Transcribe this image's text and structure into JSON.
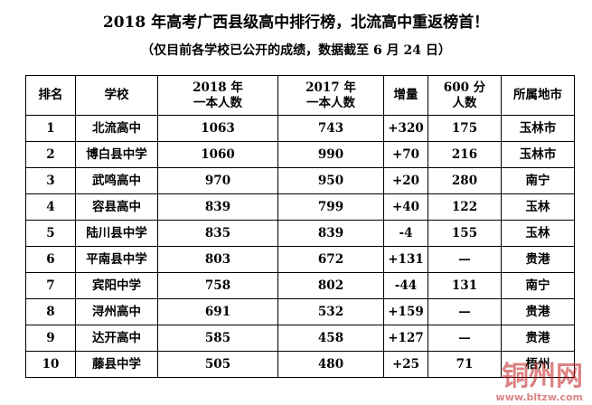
{
  "header": {
    "title": "2018 年高考广西县级高中排行榜，北流高中重返榜首！",
    "subtitle": "（仅目前各学校已公开的成绩，数据截至 6 月 24 日）"
  },
  "table": {
    "columns": [
      "排名",
      "学校",
      "2018 年\n一本人数",
      "2017 年\n一本人数",
      "增量",
      "600 分\n人数",
      "所属地市"
    ],
    "rows": [
      [
        "1",
        "北流高中",
        "1063",
        "743",
        "+320",
        "175",
        "玉林市"
      ],
      [
        "2",
        "博白县中学",
        "1060",
        "990",
        "+70",
        "216",
        "玉林市"
      ],
      [
        "3",
        "武鸣高中",
        "970",
        "950",
        "+20",
        "280",
        "南宁"
      ],
      [
        "4",
        "容县高中",
        "839",
        "799",
        "+40",
        "122",
        "玉林"
      ],
      [
        "5",
        "陆川县中学",
        "835",
        "839",
        "-4",
        "155",
        "玉林"
      ],
      [
        "6",
        "平南县中学",
        "803",
        "672",
        "+131",
        "—",
        "贵港"
      ],
      [
        "7",
        "宾阳中学",
        "758",
        "802",
        "-44",
        "131",
        "南宁"
      ],
      [
        "8",
        "浔州高中",
        "691",
        "532",
        "+159",
        "—",
        "贵港"
      ],
      [
        "9",
        "达开高中",
        "585",
        "458",
        "+127",
        "—",
        "贵港"
      ],
      [
        "10",
        "藤县中学",
        "505",
        "480",
        "+25",
        "71",
        "梧州"
      ]
    ]
  },
  "watermark": {
    "logo": "铜州网",
    "url": "www.bltzw.com"
  }
}
